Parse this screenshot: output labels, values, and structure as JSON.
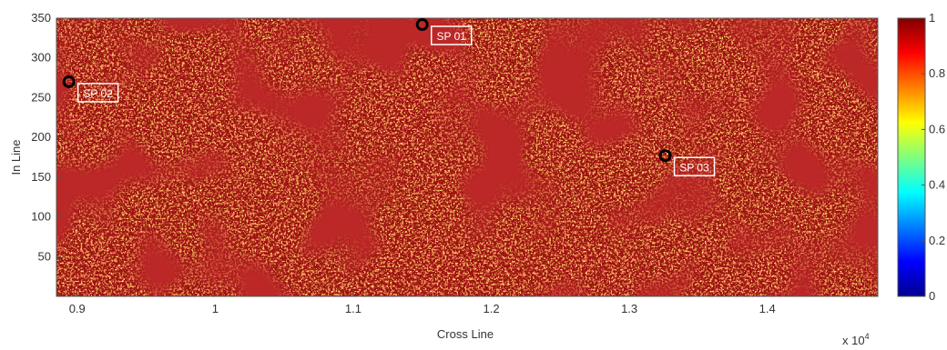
{
  "chart_data": {
    "type": "heatmap",
    "xlabel": "Cross Line",
    "ylabel": "In Line",
    "x_exponent_label": "x 10",
    "x_exponent_power": "4",
    "xlim": [
      0.885,
      1.48
    ],
    "ylim": [
      0,
      350
    ],
    "x_ticks": [
      {
        "value": 0.9,
        "label": "0.9"
      },
      {
        "value": 1.0,
        "label": "1"
      },
      {
        "value": 1.1,
        "label": "1.1"
      },
      {
        "value": 1.2,
        "label": "1.2"
      },
      {
        "value": 1.3,
        "label": "1.3"
      },
      {
        "value": 1.4,
        "label": "1.4"
      }
    ],
    "y_ticks": [
      {
        "value": 50,
        "label": "50"
      },
      {
        "value": 100,
        "label": "100"
      },
      {
        "value": 150,
        "label": "150"
      },
      {
        "value": 200,
        "label": "200"
      },
      {
        "value": 250,
        "label": "250"
      },
      {
        "value": 300,
        "label": "300"
      },
      {
        "value": 350,
        "label": "350"
      }
    ],
    "colorbar": {
      "range": [
        0,
        1
      ],
      "colormap": "jet",
      "ticks": [
        {
          "value": 0,
          "label": "0"
        },
        {
          "value": 0.2,
          "label": "0.2"
        },
        {
          "value": 0.4,
          "label": "0.4"
        },
        {
          "value": 0.6,
          "label": "0.6"
        },
        {
          "value": 0.8,
          "label": "0.8"
        },
        {
          "value": 1,
          "label": "1"
        }
      ]
    },
    "value_distribution": "mostly 0.85-1.0 (dark red), with scattered 0.6-0.8 (orange/yellow) speckles",
    "well_points": [
      {
        "label": "SP 01",
        "x": 1.15,
        "y": 342
      },
      {
        "label": "SP 02",
        "x": 0.894,
        "y": 270
      },
      {
        "label": "SP 03",
        "x": 1.326,
        "y": 177
      }
    ],
    "colors": {
      "background_field": "#9c1111",
      "marker_ring": "#000000",
      "label_box_border": "#ffffff"
    }
  }
}
